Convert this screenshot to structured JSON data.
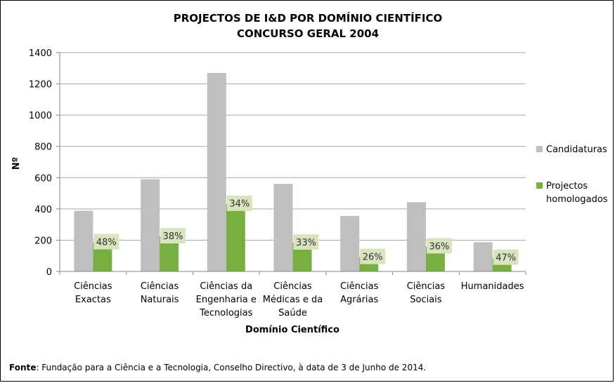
{
  "chart_data": {
    "type": "bar",
    "title_lines": [
      "PROJECTOS DE I&D POR DOMÍNIO CIENTÍFICO",
      "CONCURSO GERAL 2004"
    ],
    "xlabel": "Domínio Científico",
    "ylabel": "Nº",
    "ylim": [
      0,
      1400
    ],
    "yticks": [
      0,
      200,
      400,
      600,
      800,
      1000,
      1200,
      1400
    ],
    "grid": true,
    "legend_position": "right",
    "categories": [
      [
        "Ciências",
        "Exactas"
      ],
      [
        "Ciências",
        "Naturais"
      ],
      [
        "Ciências da",
        "Engenharia e",
        "Tecnologias"
      ],
      [
        "Ciências",
        "Médicas e da",
        "Saúde"
      ],
      [
        "Ciências",
        "Agrárias"
      ],
      [
        "Ciências",
        "Sociais"
      ],
      [
        "Humanidades"
      ]
    ],
    "series": [
      {
        "name": "Candidaturas",
        "color": "#bfbfbf",
        "values": [
          388,
          590,
          1270,
          560,
          355,
          443,
          187
        ]
      },
      {
        "name": "Projectos homologados",
        "color": "#77b040",
        "values": [
          186,
          224,
          432,
          184,
          92,
          160,
          87
        ]
      }
    ],
    "data_labels": [
      "48%",
      "38%",
      "34%",
      "33%",
      "26%",
      "36%",
      "47%"
    ],
    "legend_lines": [
      "Projectos",
      "homologados"
    ],
    "label_bg": "#d7e4bd"
  },
  "footer": {
    "label": "Fonte",
    "text": ": Fundação para a Ciência e a Tecnologia, Conselho Directivo, à data de 3 de Junho de 2014."
  }
}
